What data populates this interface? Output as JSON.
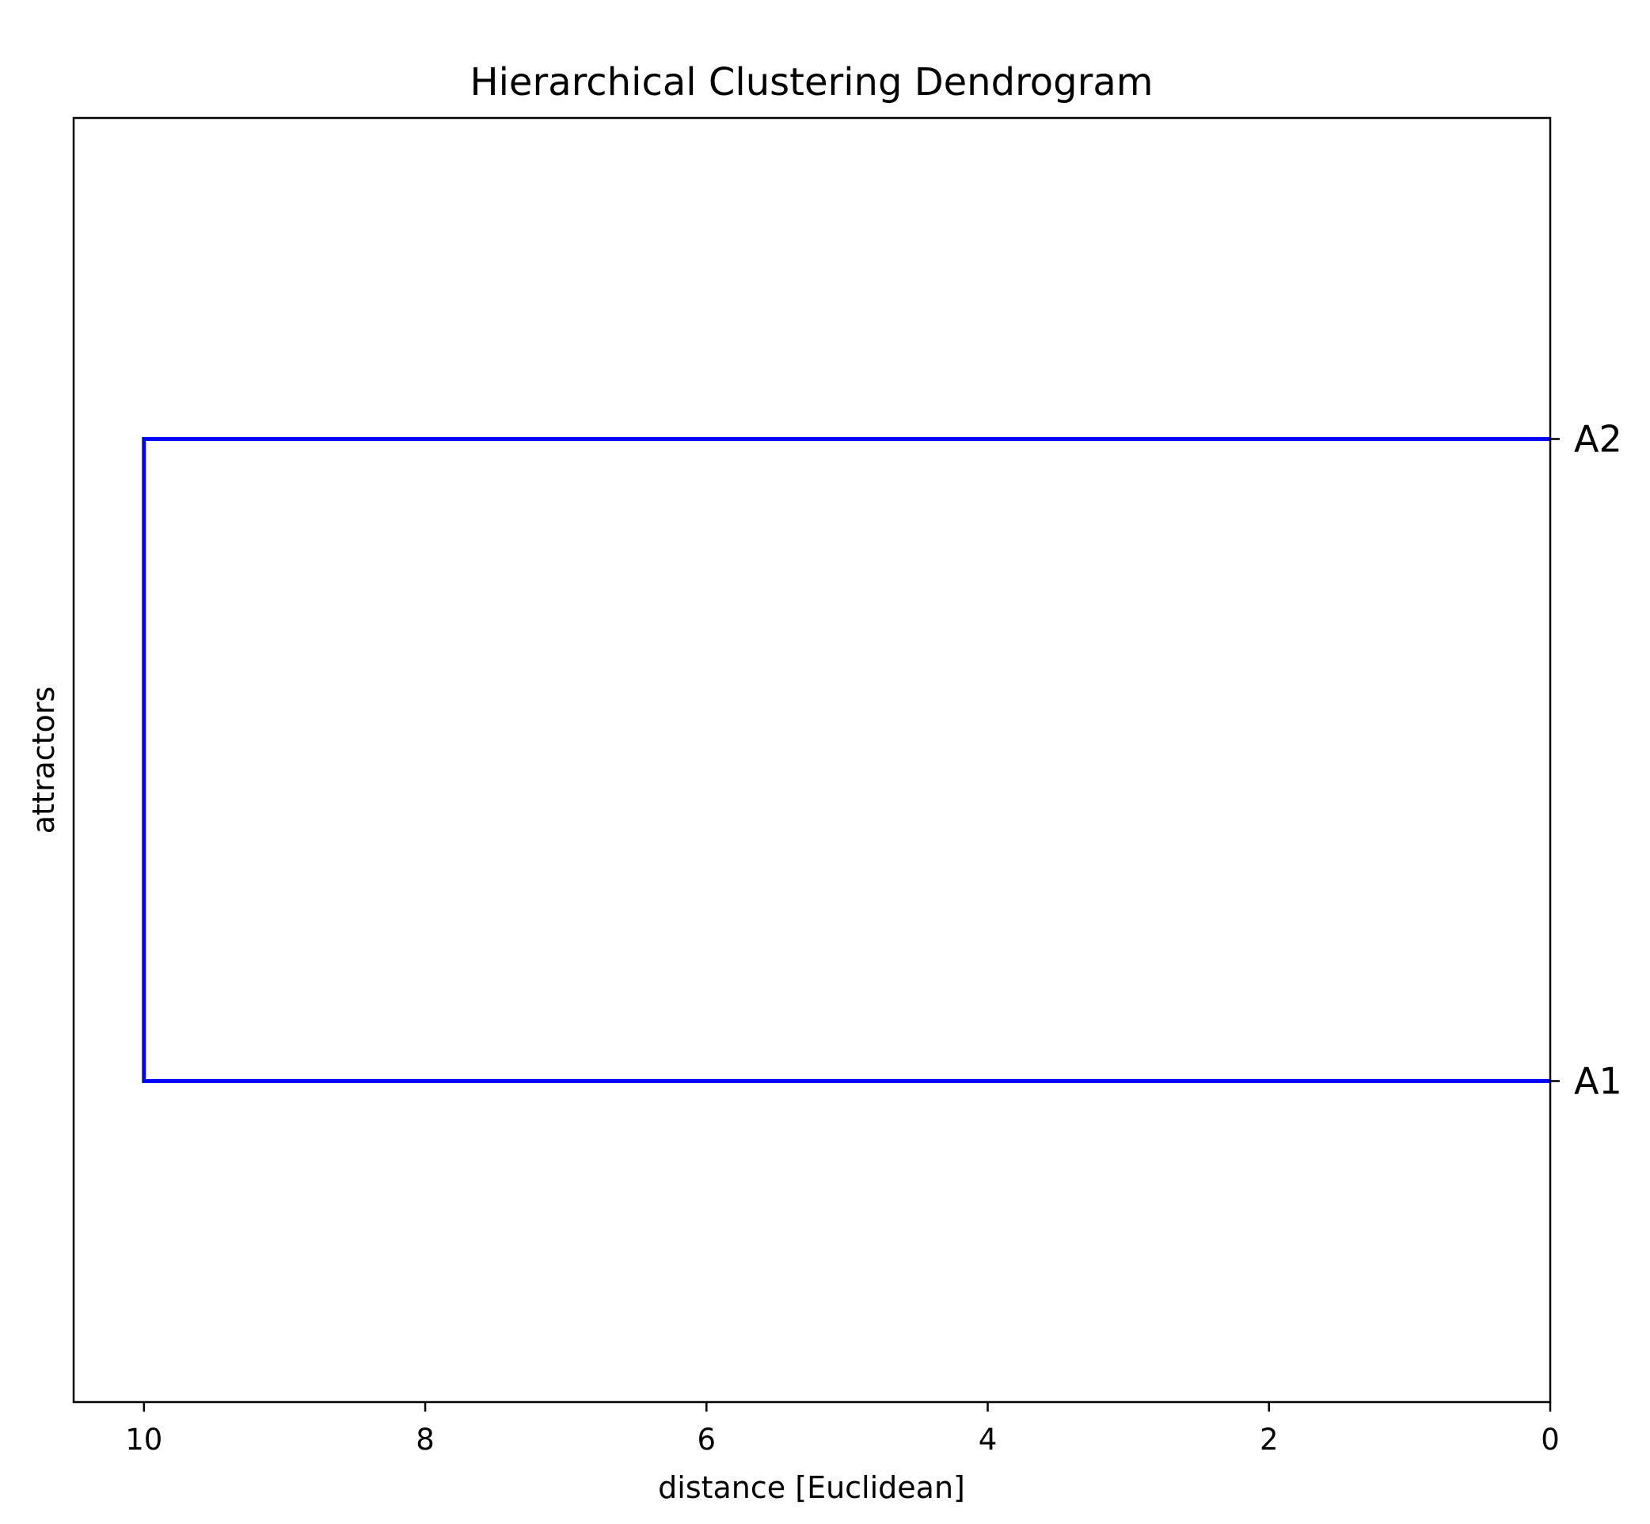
{
  "chart_data": {
    "type": "dendrogram",
    "orientation": "horizontal",
    "title": "Hierarchical Clustering Dendrogram",
    "xlabel": "distance [Euclidean]",
    "ylabel": "attractors",
    "x_inverted": true,
    "xlim": [
      10.5,
      0
    ],
    "xticks": [
      10,
      8,
      6,
      4,
      2,
      0
    ],
    "xtick_labels": [
      "10",
      "8",
      "6",
      "4",
      "2",
      "0"
    ],
    "grid": false,
    "leaves": [
      {
        "label": "A1"
      },
      {
        "label": "A2"
      }
    ],
    "merges": [
      {
        "left": "A1",
        "right": "A2",
        "distance": 10
      }
    ],
    "link_color": "#0000ff"
  }
}
